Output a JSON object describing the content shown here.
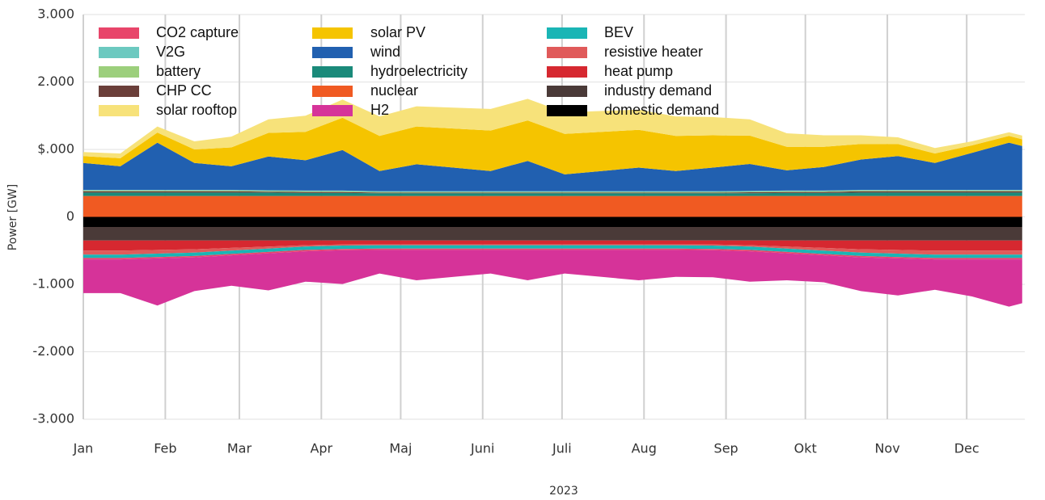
{
  "chart_data": {
    "type": "stacked_area",
    "ylabel": "Power [GW]",
    "xlabel": "2023",
    "x": [
      0,
      14,
      28,
      42,
      56,
      70,
      84,
      98,
      112,
      126,
      140,
      154,
      168,
      182,
      196,
      210,
      224,
      238,
      252,
      266,
      280,
      294,
      308,
      322,
      336,
      350,
      355
    ],
    "xlim": [
      0,
      356
    ],
    "xticks": [
      {
        "value": 0,
        "label": "Jan"
      },
      {
        "value": 31,
        "label": "Feb"
      },
      {
        "value": 59,
        "label": "Mar"
      },
      {
        "value": 90,
        "label": "Apr"
      },
      {
        "value": 120,
        "label": "Maj"
      },
      {
        "value": 151,
        "label": "Juni"
      },
      {
        "value": 181,
        "label": "Juli"
      },
      {
        "value": 212,
        "label": "Aug"
      },
      {
        "value": 243,
        "label": "Sep"
      },
      {
        "value": 273,
        "label": "Okt"
      },
      {
        "value": 304,
        "label": "Nov"
      },
      {
        "value": 334,
        "label": "Dec"
      }
    ],
    "ylim": [
      -3000,
      3000
    ],
    "yticks": [
      {
        "value": 3000,
        "label": "3.000"
      },
      {
        "value": 2000,
        "label": "2.000"
      },
      {
        "value": 1000,
        "label": "$.000"
      },
      0,
      {
        "value": -1000,
        "label": "-1.000"
      },
      {
        "value": -2000,
        "label": "-2.000"
      },
      {
        "value": -3000,
        "label": "-3.000"
      }
    ],
    "grid": true,
    "series": [
      {
        "name": "CO2 capture",
        "color": "#e8456a",
        "values": [
          -20,
          -20,
          -20,
          -20,
          -20,
          -20,
          -20,
          -20,
          -20,
          -20,
          -20,
          -20,
          -20,
          -20,
          -20,
          -20,
          -20,
          -20,
          -20,
          -20,
          -20,
          -20,
          -20,
          -20,
          -20,
          -20,
          -20
        ]
      },
      {
        "name": "V2G",
        "color": "#6cc9c0",
        "values": [
          10,
          10,
          10,
          10,
          10,
          10,
          10,
          10,
          10,
          10,
          10,
          10,
          10,
          10,
          10,
          10,
          10,
          10,
          10,
          10,
          10,
          10,
          10,
          10,
          10,
          10,
          10
        ]
      },
      {
        "name": "battery",
        "color": "#9ccf7c",
        "values": [
          10,
          10,
          10,
          10,
          10,
          10,
          10,
          10,
          10,
          10,
          10,
          10,
          10,
          10,
          10,
          10,
          10,
          10,
          10,
          10,
          10,
          10,
          10,
          10,
          10,
          10,
          10
        ]
      },
      {
        "name": "CHP CC",
        "color": "#6b3f3a",
        "values": [
          20,
          20,
          20,
          20,
          20,
          15,
          15,
          15,
          10,
          10,
          10,
          10,
          10,
          10,
          10,
          10,
          10,
          10,
          15,
          15,
          15,
          20,
          20,
          20,
          20,
          20,
          20
        ]
      },
      {
        "name": "solar rooftop",
        "color": "#f7e27a",
        "values": [
          60,
          70,
          90,
          120,
          160,
          200,
          240,
          270,
          290,
          300,
          310,
          320,
          320,
          320,
          310,
          300,
          290,
          270,
          240,
          200,
          170,
          130,
          100,
          80,
          60,
          55,
          55
        ]
      },
      {
        "name": "solar PV",
        "color": "#f5c400",
        "values": [
          100,
          120,
          150,
          200,
          280,
          350,
          420,
          480,
          520,
          560,
          580,
          600,
          600,
          600,
          580,
          560,
          520,
          480,
          420,
          350,
          300,
          230,
          180,
          140,
          110,
          100,
          100
        ]
      },
      {
        "name": "wind",
        "color": "#2160b0",
        "values": [
          400,
          350,
          700,
          400,
          350,
          500,
          450,
          600,
          300,
          400,
          350,
          300,
          450,
          250,
          300,
          350,
          300,
          350,
          400,
          300,
          350,
          450,
          500,
          400,
          550,
          700,
          650
        ]
      },
      {
        "name": "hydroelectricity",
        "color": "#1a8a7a",
        "values": [
          50,
          50,
          50,
          50,
          50,
          50,
          45,
          45,
          40,
          40,
          40,
          40,
          40,
          40,
          40,
          40,
          40,
          40,
          40,
          45,
          45,
          50,
          50,
          50,
          50,
          50,
          50
        ]
      },
      {
        "name": "nuclear",
        "color": "#f05a22",
        "values": [
          310,
          310,
          310,
          310,
          310,
          310,
          310,
          310,
          310,
          310,
          310,
          310,
          310,
          310,
          310,
          310,
          310,
          310,
          310,
          310,
          310,
          310,
          310,
          310,
          310,
          310,
          310
        ]
      },
      {
        "name": "H2",
        "color": "#d63399",
        "values": [
          -500,
          -500,
          -700,
          -500,
          -450,
          -550,
          -450,
          -500,
          -350,
          -450,
          -400,
          -350,
          -450,
          -350,
          -400,
          -450,
          -400,
          -400,
          -450,
          -400,
          -400,
          -500,
          -550,
          -450,
          -550,
          -700,
          -650
        ]
      },
      {
        "name": "BEV",
        "color": "#1ab5b5",
        "values": [
          -50,
          -50,
          -50,
          -50,
          -50,
          -50,
          -50,
          -50,
          -50,
          -50,
          -50,
          -50,
          -50,
          -50,
          -50,
          -50,
          -50,
          -50,
          -50,
          -50,
          -50,
          -50,
          -50,
          -50,
          -50,
          -50,
          -50
        ]
      },
      {
        "name": "resistive heater",
        "color": "#e05a5a",
        "values": [
          -60,
          -60,
          -55,
          -50,
          -40,
          -30,
          -20,
          -15,
          -10,
          -10,
          -10,
          -10,
          -10,
          -10,
          -10,
          -10,
          -10,
          -15,
          -20,
          -30,
          -40,
          -50,
          -55,
          -60,
          -60,
          -60,
          -60
        ]
      },
      {
        "name": "heat pump",
        "color": "#d62830",
        "values": [
          -150,
          -150,
          -140,
          -130,
          -110,
          -90,
          -70,
          -60,
          -60,
          -60,
          -60,
          -60,
          -60,
          -60,
          -60,
          -60,
          -60,
          -60,
          -70,
          -90,
          -110,
          -130,
          -140,
          -150,
          -150,
          -150,
          -150
        ]
      },
      {
        "name": "industry demand",
        "color": "#4a3a38",
        "values": [
          -200,
          -200,
          -200,
          -200,
          -200,
          -200,
          -200,
          -200,
          -200,
          -200,
          -200,
          -200,
          -200,
          -200,
          -200,
          -200,
          -200,
          -200,
          -200,
          -200,
          -200,
          -200,
          -200,
          -200,
          -200,
          -200,
          -200
        ]
      },
      {
        "name": "domestic demand",
        "color": "#000000",
        "values": [
          -150,
          -150,
          -150,
          -150,
          -150,
          -150,
          -150,
          -150,
          -150,
          -150,
          -150,
          -150,
          -150,
          -150,
          -150,
          -150,
          -150,
          -150,
          -150,
          -150,
          -150,
          -150,
          -150,
          -150,
          -150,
          -150,
          -150
        ]
      }
    ]
  }
}
